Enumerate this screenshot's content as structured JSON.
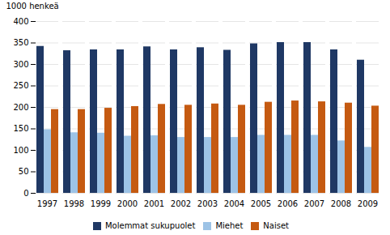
{
  "chart_data": {
    "type": "bar",
    "categories": [
      "1997",
      "1998",
      "1999",
      "2000",
      "2001",
      "2002",
      "2003",
      "2004",
      "2005",
      "2006",
      "2007",
      "2008",
      "2009"
    ],
    "series": [
      {
        "name": "Molemmat sukupuolet",
        "color": "#1F3864",
        "values": [
          342,
          332,
          334,
          334,
          341,
          334,
          339,
          333,
          348,
          351,
          351,
          334,
          310
        ]
      },
      {
        "name": "Miehet",
        "color": "#9DC3E6",
        "values": [
          148,
          141,
          140,
          133,
          134,
          130,
          130,
          130,
          135,
          135,
          135,
          122,
          107
        ]
      },
      {
        "name": "Naiset",
        "color": "#C55A11",
        "values": [
          195,
          195,
          198,
          202,
          207,
          205,
          208,
          205,
          212,
          215,
          213,
          210,
          203
        ]
      }
    ],
    "ylabel": "1000 henkeä",
    "ylim": [
      0,
      400
    ],
    "yticks": [
      0,
      50,
      100,
      150,
      200,
      250,
      300,
      350,
      400
    ],
    "grid": true,
    "legend": "bottom"
  }
}
